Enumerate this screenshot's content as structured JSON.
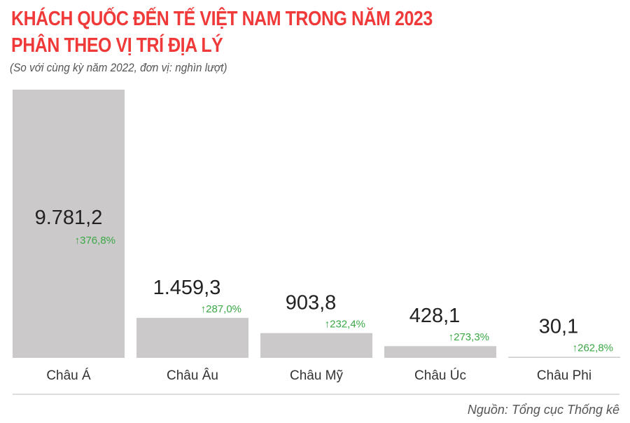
{
  "title_line1": "KHÁCH QUỐC ĐẾN TẾ VIỆT NAM TRONG NĂM 2023",
  "title_line2": "PHÂN THEO VỊ TRÍ ĐỊA LÝ",
  "subtitle": "(So với cùng kỳ năm 2022, đơn vị: nghìn lượt)",
  "source": "Nguồn: Tổng cục Thống kê",
  "colors": {
    "title": "#f03a3a",
    "bar": "#ccc9cb",
    "growth": "#3aa845",
    "value": "#222222"
  },
  "chart_data": {
    "type": "bar",
    "categories": [
      "Châu Á",
      "Châu Âu",
      "Châu Mỹ",
      "Châu Úc",
      "Châu Phi"
    ],
    "values": [
      9781.2,
      1459.3,
      903.8,
      428.1,
      30.1
    ],
    "value_labels": [
      "9.781,2",
      "1.459,3",
      "903,8",
      "428,1",
      "30,1"
    ],
    "growth_labels": [
      "376,8%",
      "287,0%",
      "232,4%",
      "273,3%",
      "262,8%"
    ],
    "growth_icon": "arrow-up-icon",
    "title": "KHÁCH QUỐC ĐẾN TẾ VIỆT NAM TRONG NĂM 2023 PHÂN THEO VỊ TRÍ ĐỊA LÝ",
    "xlabel": "",
    "ylabel": "",
    "grid": false,
    "legend": "none"
  }
}
